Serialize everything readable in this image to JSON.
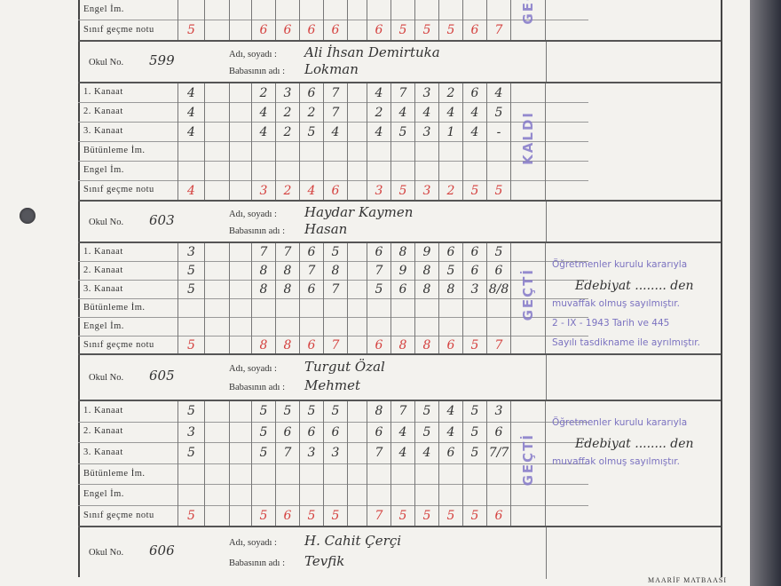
{
  "row_labels": [
    "1. Kanaat",
    "2. Kanaat",
    "3. Kanaat",
    "Bütünleme İm.",
    "Engel İm.",
    "Sınıf geçme notu"
  ],
  "name_labels": {
    "okul_no": "Okul No.",
    "adi_soyadi": "Adı, soyadı :",
    "babasinin_adi": "Babasının adı :"
  },
  "top_partial": {
    "stamp": "GEÇ",
    "grades": [
      [
        "",
        "",
        "",
        "",
        "",
        "",
        "",
        "",
        "",
        "",
        "",
        "",
        "",
        ""
      ],
      [
        "5",
        "",
        "",
        "6",
        "6",
        "6",
        "6",
        "",
        "6",
        "5",
        "5",
        "5",
        "6",
        "7"
      ]
    ]
  },
  "students": [
    {
      "okul_no": "599",
      "name": "Ali İhsan Demirtuka",
      "father": "Lokman",
      "stamp": "KALDI",
      "grades": [
        [
          "4",
          "",
          "",
          "2",
          "3",
          "6",
          "7",
          "",
          "4",
          "7",
          "3",
          "2",
          "6",
          "4"
        ],
        [
          "4",
          "",
          "",
          "4",
          "2",
          "2",
          "7",
          "",
          "2",
          "4",
          "4",
          "4",
          "4",
          "5"
        ],
        [
          "4",
          "",
          "",
          "4",
          "2",
          "5",
          "4",
          "",
          "4",
          "5",
          "3",
          "1",
          "4",
          "-"
        ],
        [
          "",
          "",
          "",
          "",
          "",
          "",
          "",
          "",
          "",
          "",
          "",
          "",
          "",
          ""
        ],
        [
          "",
          "",
          "",
          "",
          "",
          "",
          "",
          "",
          "",
          "",
          "",
          "",
          "",
          ""
        ],
        [
          "4",
          "",
          "",
          "3",
          "2",
          "4",
          "6",
          "",
          "3",
          "5",
          "3",
          "2",
          "5",
          "5"
        ]
      ],
      "remarks": []
    },
    {
      "okul_no": "603",
      "name": "Haydar Kaymen",
      "father": "Hasan",
      "stamp": "GEÇTİ",
      "grades": [
        [
          "3",
          "",
          "",
          "7",
          "7",
          "6",
          "5",
          "",
          "6",
          "8",
          "9",
          "6",
          "6",
          "5"
        ],
        [
          "5",
          "",
          "",
          "8",
          "8",
          "7",
          "8",
          "",
          "7",
          "9",
          "8",
          "5",
          "6",
          "6"
        ],
        [
          "5",
          "",
          "",
          "8",
          "8",
          "6",
          "7",
          "",
          "5",
          "6",
          "8",
          "8",
          "3",
          "8/8"
        ],
        [
          "",
          "",
          "",
          "",
          "",
          "",
          "",
          "",
          "",
          "",
          "",
          "",
          "",
          ""
        ],
        [
          "",
          "",
          "",
          "",
          "",
          "",
          "",
          "",
          "",
          "",
          "",
          "",
          "",
          ""
        ],
        [
          "5",
          "",
          "",
          "8",
          "8",
          "6",
          "7",
          "",
          "6",
          "8",
          "8",
          "6",
          "5",
          "7"
        ]
      ],
      "remarks": [
        "Öğretmenler kurulu kararıyla",
        "Edebiyat ........ den",
        "muvaffak olmuş sayılmıştır.",
        "2 - IX - 1943 Tarih ve 445",
        "Sayılı tasdikname ile ayrılmıştır."
      ]
    },
    {
      "okul_no": "605",
      "name": "Turgut Özal",
      "father": "Mehmet",
      "stamp": "GEÇTİ",
      "grades": [
        [
          "5",
          "",
          "",
          "5",
          "5",
          "5",
          "5",
          "",
          "8",
          "7",
          "5",
          "4",
          "5",
          "3"
        ],
        [
          "3",
          "",
          "",
          "5",
          "6",
          "6",
          "6",
          "",
          "6",
          "4",
          "5",
          "4",
          "5",
          "6"
        ],
        [
          "5",
          "",
          "",
          "5",
          "7",
          "3",
          "3",
          "",
          "7",
          "4",
          "4",
          "6",
          "5",
          "7/7"
        ],
        [
          "",
          "",
          "",
          "",
          "",
          "",
          "",
          "",
          "",
          "",
          "",
          "",
          "",
          ""
        ],
        [
          "",
          "",
          "",
          "",
          "",
          "",
          "",
          "",
          "",
          "",
          "",
          "",
          "",
          ""
        ],
        [
          "5",
          "",
          "",
          "5",
          "6",
          "5",
          "5",
          "",
          "7",
          "5",
          "5",
          "5",
          "5",
          "6"
        ]
      ],
      "remarks": [
        "Öğretmenler kurulu kararıyla",
        "Edebiyat ........ den",
        "muvaffak olmuş sayılmıştır."
      ]
    },
    {
      "okul_no": "606",
      "name": "H. Cahit Çerçi",
      "father": "Tevfik",
      "stamp": "",
      "grades": [],
      "remarks": []
    }
  ],
  "footer": "MAARİF MATBAASI",
  "colors": {
    "ink": "#333333",
    "red_ink": "#d4403e",
    "stamp": "#8479c9"
  }
}
